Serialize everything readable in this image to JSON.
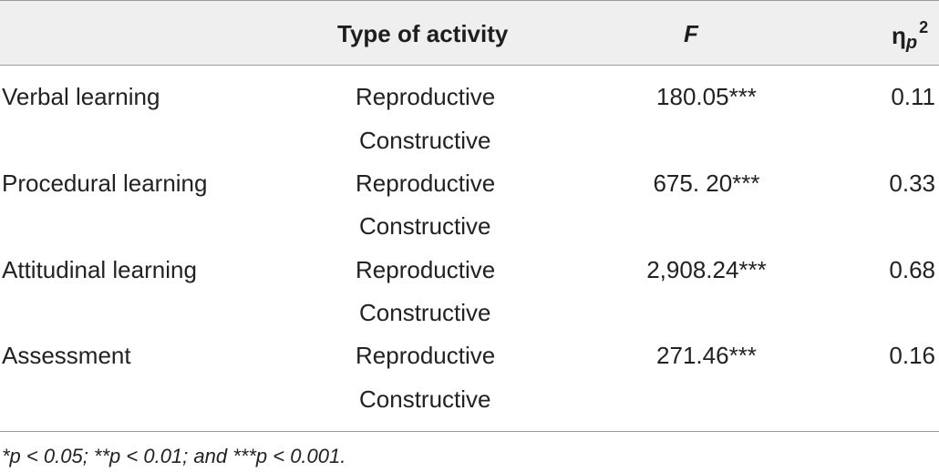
{
  "headers": {
    "label": "",
    "type_of_activity": "Type of activity",
    "f": "F",
    "eta_symbol": "η",
    "eta_sub": "p",
    "eta_sup": "2"
  },
  "rows": [
    {
      "label": "Verbal learning",
      "type1": "Reproductive",
      "type2": "Constructive",
      "f": "180.05***",
      "eta": "0.11"
    },
    {
      "label": "Procedural learning",
      "type1": "Reproductive",
      "type2": "Constructive",
      "f": "675. 20***",
      "eta": "0.33"
    },
    {
      "label": "Attitudinal learning",
      "type1": "Reproductive",
      "type2": "Constructive",
      "f": "2,908.24***",
      "eta": "0.68"
    },
    {
      "label": "Assessment",
      "type1": "Reproductive",
      "type2": "Constructive",
      "f": "271.46***",
      "eta": "0.16"
    }
  ],
  "footnote": "*p < 0.05; **p < 0.01; and ***p < 0.001.",
  "colors": {
    "header_bg": "#efefef",
    "rule": "#9a9a9a",
    "text": "#222222"
  }
}
